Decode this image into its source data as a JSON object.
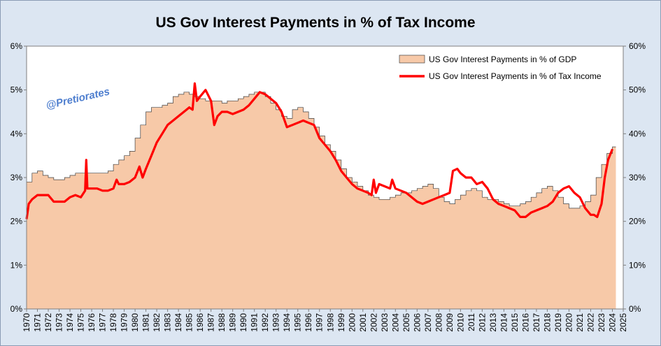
{
  "chart_data": {
    "type": "area",
    "title": "US Gov Interest Payments in % of Tax Income",
    "watermark": "@Pretiorates",
    "x_labels": [
      "1970",
      "1971",
      "1972",
      "1973",
      "1974",
      "1975",
      "1976",
      "1977",
      "1978",
      "1979",
      "1980",
      "1981",
      "1982",
      "1983",
      "1984",
      "1985",
      "1986",
      "1987",
      "1988",
      "1989",
      "1990",
      "1991",
      "1992",
      "1993",
      "1994",
      "1995",
      "1996",
      "1997",
      "1998",
      "1999",
      "2000",
      "2001",
      "2002",
      "2003",
      "2004",
      "2005",
      "2006",
      "2007",
      "2008",
      "2009",
      "2010",
      "2011",
      "2012",
      "2013",
      "2014",
      "2015",
      "2016",
      "2017",
      "2018",
      "2019",
      "2020",
      "2021",
      "2022",
      "2023",
      "2024",
      "2025"
    ],
    "xlim": [
      1970,
      2025
    ],
    "left_axis": {
      "ticks": [
        "0%",
        "1%",
        "2%",
        "3%",
        "4%",
        "5%",
        "6%"
      ],
      "ylim": [
        0,
        6
      ]
    },
    "right_axis": {
      "ticks": [
        "0%",
        "10%",
        "20%",
        "30%",
        "40%",
        "50%",
        "60%"
      ],
      "ylim": [
        0,
        60
      ]
    },
    "grid": false,
    "legend_position": "top-right",
    "series": [
      {
        "name": "US Gov Interest Payments in % of GDP",
        "kind": "area",
        "axis": "left",
        "color": "#f7c9a8",
        "edge_color": "#404040",
        "x": [
          1970.0,
          1970.5,
          1971.0,
          1971.5,
          1972.0,
          1972.5,
          1973.0,
          1973.5,
          1974.0,
          1974.5,
          1975.0,
          1975.5,
          1976.0,
          1976.5,
          1977.0,
          1977.5,
          1978.0,
          1978.5,
          1979.0,
          1979.5,
          1980.0,
          1980.5,
          1981.0,
          1981.5,
          1982.0,
          1982.5,
          1983.0,
          1983.5,
          1984.0,
          1984.5,
          1985.0,
          1985.5,
          1986.0,
          1986.5,
          1987.0,
          1987.5,
          1988.0,
          1988.5,
          1989.0,
          1989.5,
          1990.0,
          1990.5,
          1991.0,
          1991.5,
          1992.0,
          1992.5,
          1993.0,
          1993.5,
          1994.0,
          1994.5,
          1995.0,
          1995.5,
          1996.0,
          1996.5,
          1997.0,
          1997.5,
          1998.0,
          1998.5,
          1999.0,
          1999.5,
          2000.0,
          2000.5,
          2001.0,
          2001.5,
          2002.0,
          2002.5,
          2003.0,
          2003.5,
          2004.0,
          2004.5,
          2005.0,
          2005.5,
          2006.0,
          2006.5,
          2007.0,
          2007.5,
          2008.0,
          2008.5,
          2009.0,
          2009.5,
          2010.0,
          2010.5,
          2011.0,
          2011.5,
          2012.0,
          2012.5,
          2013.0,
          2013.5,
          2014.0,
          2014.5,
          2015.0,
          2015.5,
          2016.0,
          2016.5,
          2017.0,
          2017.5,
          2018.0,
          2018.5,
          2019.0,
          2019.5,
          2020.0,
          2020.5,
          2021.0,
          2021.5,
          2022.0,
          2022.5,
          2023.0,
          2023.5,
          2024.0
        ],
        "values": [
          2.9,
          3.1,
          3.15,
          3.05,
          3.0,
          2.95,
          2.95,
          3.0,
          3.05,
          3.1,
          3.1,
          3.1,
          3.1,
          3.1,
          3.1,
          3.15,
          3.3,
          3.4,
          3.5,
          3.6,
          3.9,
          4.2,
          4.5,
          4.6,
          4.6,
          4.65,
          4.7,
          4.85,
          4.9,
          4.95,
          4.9,
          4.85,
          4.8,
          4.75,
          4.75,
          4.75,
          4.7,
          4.75,
          4.75,
          4.8,
          4.85,
          4.9,
          4.95,
          4.95,
          4.85,
          4.7,
          4.55,
          4.4,
          4.35,
          4.55,
          4.6,
          4.5,
          4.35,
          4.15,
          3.95,
          3.75,
          3.6,
          3.4,
          3.2,
          3.0,
          2.9,
          2.8,
          2.7,
          2.6,
          2.55,
          2.5,
          2.5,
          2.55,
          2.6,
          2.65,
          2.65,
          2.7,
          2.75,
          2.8,
          2.85,
          2.75,
          2.55,
          2.45,
          2.4,
          2.5,
          2.6,
          2.7,
          2.75,
          2.7,
          2.55,
          2.5,
          2.5,
          2.45,
          2.4,
          2.35,
          2.35,
          2.4,
          2.45,
          2.55,
          2.65,
          2.75,
          2.8,
          2.7,
          2.55,
          2.4,
          2.3,
          2.3,
          2.35,
          2.45,
          2.6,
          3.0,
          3.3,
          3.55,
          3.7
        ]
      },
      {
        "name": "US Gov Interest Payments in % of Tax Income",
        "kind": "line",
        "axis": "right",
        "color": "#ff0000",
        "x": [
          1970.0,
          1970.2,
          1970.5,
          1971.0,
          1971.5,
          1972.0,
          1972.5,
          1973.0,
          1973.5,
          1974.0,
          1974.5,
          1975.0,
          1975.4,
          1975.5,
          1975.6,
          1976.0,
          1976.5,
          1977.0,
          1977.5,
          1978.0,
          1978.3,
          1978.5,
          1979.0,
          1979.5,
          1980.0,
          1980.4,
          1980.7,
          1981.0,
          1981.5,
          1982.0,
          1982.5,
          1983.0,
          1983.5,
          1984.0,
          1984.5,
          1985.0,
          1985.3,
          1985.5,
          1985.7,
          1986.0,
          1986.5,
          1987.0,
          1987.3,
          1987.6,
          1988.0,
          1988.5,
          1989.0,
          1989.5,
          1990.0,
          1990.5,
          1991.0,
          1991.5,
          1992.0,
          1992.5,
          1993.0,
          1993.5,
          1994.0,
          1994.5,
          1995.0,
          1995.5,
          1996.0,
          1996.5,
          1997.0,
          1997.5,
          1998.0,
          1998.5,
          1999.0,
          1999.5,
          2000.0,
          2000.5,
          2001.0,
          2001.5,
          2001.8,
          2002.0,
          2002.2,
          2002.5,
          2003.0,
          2003.5,
          2003.7,
          2004.0,
          2004.5,
          2005.0,
          2005.5,
          2006.0,
          2006.5,
          2007.0,
          2007.5,
          2008.0,
          2008.5,
          2009.0,
          2009.3,
          2009.7,
          2010.0,
          2010.5,
          2011.0,
          2011.5,
          2012.0,
          2012.5,
          2013.0,
          2013.5,
          2014.0,
          2014.5,
          2015.0,
          2015.5,
          2016.0,
          2016.5,
          2017.0,
          2017.5,
          2018.0,
          2018.5,
          2019.0,
          2019.5,
          2020.0,
          2020.5,
          2021.0,
          2021.5,
          2022.0,
          2022.3,
          2022.6,
          2023.0,
          2023.3,
          2023.6,
          2024.0
        ],
        "values": [
          20.5,
          24.0,
          25.0,
          26.0,
          26.0,
          26.0,
          24.5,
          24.5,
          24.5,
          25.5,
          26.0,
          25.5,
          27.0,
          34.0,
          27.5,
          27.5,
          27.5,
          27.0,
          27.0,
          27.5,
          29.5,
          28.5,
          28.5,
          29.0,
          30.0,
          32.5,
          30.0,
          32.0,
          35.0,
          38.0,
          40.0,
          42.0,
          43.0,
          44.0,
          45.0,
          46.0,
          45.5,
          51.5,
          47.5,
          48.5,
          50.0,
          47.5,
          42.0,
          44.0,
          45.0,
          45.0,
          44.5,
          45.0,
          45.5,
          46.5,
          48.0,
          49.5,
          49.0,
          48.0,
          47.0,
          45.0,
          41.5,
          42.0,
          42.5,
          43.0,
          42.5,
          42.0,
          39.0,
          37.5,
          36.0,
          34.0,
          31.5,
          30.0,
          28.5,
          27.5,
          27.0,
          26.5,
          26.0,
          29.5,
          26.5,
          28.5,
          28.0,
          27.5,
          29.5,
          27.5,
          27.0,
          26.5,
          25.5,
          24.5,
          24.0,
          24.5,
          25.0,
          25.5,
          26.0,
          26.5,
          31.5,
          32.0,
          31.0,
          30.0,
          30.0,
          28.5,
          29.0,
          27.5,
          25.0,
          24.0,
          23.5,
          23.0,
          22.5,
          21.0,
          21.0,
          22.0,
          22.5,
          23.0,
          23.5,
          24.5,
          26.5,
          27.5,
          28.0,
          26.5,
          25.5,
          23.0,
          21.5,
          21.5,
          21.0,
          24.0,
          30.0,
          34.0,
          36.5
        ]
      }
    ]
  }
}
